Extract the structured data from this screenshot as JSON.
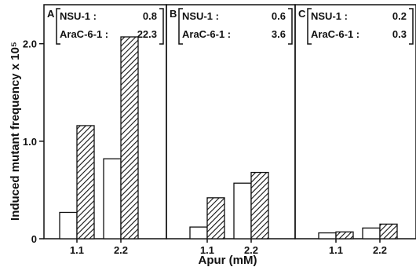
{
  "chart_data": {
    "type": "bar",
    "title": "",
    "xlabel": "Apur (mM)",
    "ylabel": "Induced mutant frequency x 10⁵",
    "ylim": [
      0,
      2.4
    ],
    "yticks": [
      "0",
      "1.0",
      "2.0"
    ],
    "categories": [
      "1.1",
      "2.2"
    ],
    "grid": false,
    "bar_styles": {
      "NSU-1": "open",
      "AraC-6-1": "hatched"
    },
    "panels": [
      {
        "letter": "A",
        "legend": [
          {
            "label": "NSU-1 :",
            "value": "0.8"
          },
          {
            "label": "AraC-6-1 :",
            "value": "22.3"
          }
        ],
        "series": [
          {
            "name": "NSU-1",
            "values": [
              0.27,
              0.82
            ]
          },
          {
            "name": "AraC-6-1",
            "values": [
              1.16,
              2.07
            ]
          }
        ]
      },
      {
        "letter": "B",
        "legend": [
          {
            "label": "NSU-1 :",
            "value": "0.6"
          },
          {
            "label": "AraC-6-1 :",
            "value": "3.6"
          }
        ],
        "series": [
          {
            "name": "NSU-1",
            "values": [
              0.12,
              0.57
            ]
          },
          {
            "name": "AraC-6-1",
            "values": [
              0.42,
              0.68
            ]
          }
        ]
      },
      {
        "letter": "C",
        "legend": [
          {
            "label": "NSU-1 :",
            "value": "0.2"
          },
          {
            "label": "AraC-6-1 :",
            "value": "0.3"
          }
        ],
        "series": [
          {
            "name": "NSU-1",
            "values": [
              0.06,
              0.11
            ]
          },
          {
            "name": "AraC-6-1",
            "values": [
              0.07,
              0.15
            ]
          }
        ]
      }
    ]
  }
}
